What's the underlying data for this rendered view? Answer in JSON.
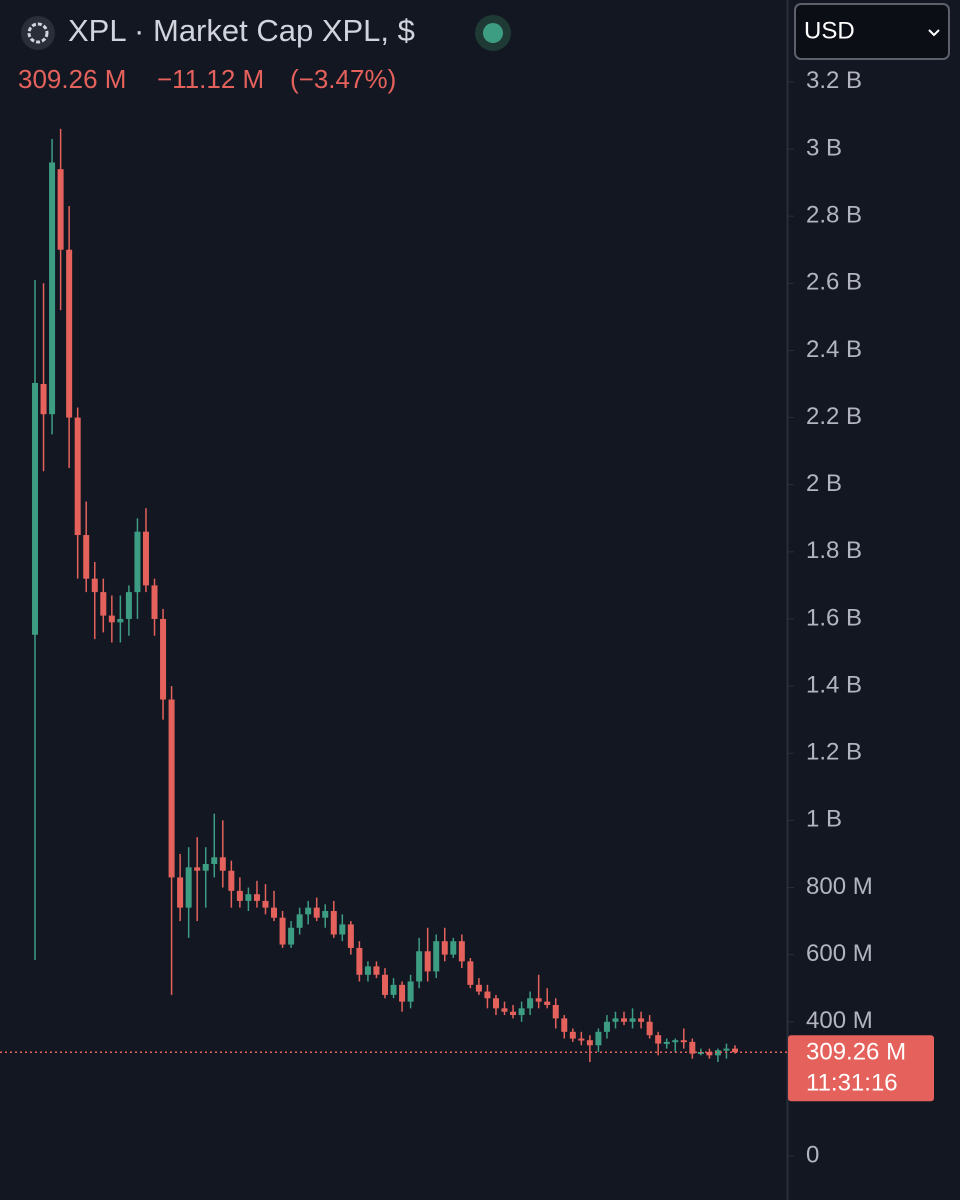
{
  "chart_data": {
    "type": "candlestick",
    "title": "XPL · Market Cap XPL, $",
    "currency": "USD",
    "last_price": {
      "value": 309.26,
      "label": "309.26 M"
    },
    "change": "−11.12 M",
    "change_pct": "(−3.47%)",
    "countdown": "11:31:16",
    "up_color": "#3d9d83",
    "down_color": "#e5625c",
    "ylim": [
      -131,
      3444
    ],
    "yticks": [
      0,
      {
        "value": 400,
        "label": "400 M"
      },
      {
        "value": 600,
        "label": "600 M"
      },
      {
        "value": 800,
        "label": "800 M"
      },
      {
        "value": 1000,
        "label": "1 B"
      },
      {
        "value": 1200,
        "label": "1.2 B"
      },
      {
        "value": 1400,
        "label": "1.4 B"
      },
      {
        "value": 1600,
        "label": "1.6 B"
      },
      {
        "value": 1800,
        "label": "1.8 B"
      },
      {
        "value": 2000,
        "label": "2 B"
      },
      {
        "value": 2200,
        "label": "2.2 B"
      },
      {
        "value": 2400,
        "label": "2.4 B"
      },
      {
        "value": 2600,
        "label": "2.6 B"
      },
      {
        "value": 2800,
        "label": "2.8 B"
      },
      {
        "value": 3000,
        "label": "3 B"
      },
      {
        "value": 3200,
        "label": "3.2 B"
      }
    ],
    "open": [
      1553,
      2300,
      2210,
      2940,
      2700,
      2200,
      1850,
      1720,
      1680,
      1610,
      1590,
      1600,
      1680,
      1860,
      1700,
      1600,
      1360,
      830,
      740,
      860,
      850,
      870,
      890,
      850,
      790,
      760,
      780,
      760,
      740,
      710,
      630,
      680,
      720,
      740,
      710,
      730,
      660,
      690,
      620,
      540,
      565,
      540,
      480,
      510,
      460,
      520,
      610,
      550,
      640,
      600,
      640,
      580,
      510,
      490,
      470,
      440,
      430,
      420,
      440,
      470,
      460,
      450,
      410,
      370,
      350,
      345,
      330,
      370,
      400,
      410,
      400,
      410,
      400,
      360,
      335,
      340,
      345,
      340,
      305,
      310,
      300,
      315,
      320
    ],
    "high": [
      2610,
      2600,
      3030,
      3060,
      2830,
      2230,
      1950,
      1770,
      1720,
      1670,
      1670,
      1700,
      1900,
      1930,
      1720,
      1630,
      1400,
      900,
      920,
      950,
      920,
      1020,
      1000,
      880,
      830,
      800,
      820,
      810,
      790,
      730,
      700,
      740,
      760,
      770,
      750,
      760,
      720,
      700,
      640,
      580,
      580,
      560,
      530,
      520,
      540,
      650,
      680,
      660,
      680,
      650,
      660,
      590,
      530,
      510,
      480,
      460,
      450,
      460,
      490,
      540,
      500,
      470,
      420,
      380,
      370,
      360,
      380,
      420,
      430,
      430,
      440,
      430,
      420,
      370,
      350,
      350,
      380,
      350,
      320,
      320,
      320,
      335,
      330
    ],
    "low": [
      584,
      2040,
      2150,
      2520,
      2050,
      1720,
      1680,
      1540,
      1560,
      1530,
      1530,
      1550,
      1600,
      1680,
      1550,
      1300,
      480,
      700,
      650,
      700,
      740,
      830,
      800,
      740,
      740,
      730,
      740,
      720,
      700,
      620,
      620,
      660,
      690,
      700,
      680,
      650,
      640,
      600,
      520,
      520,
      530,
      470,
      470,
      430,
      440,
      500,
      520,
      530,
      580,
      590,
      560,
      500,
      480,
      440,
      420,
      420,
      410,
      400,
      420,
      440,
      440,
      380,
      350,
      340,
      330,
      280,
      310,
      350,
      380,
      390,
      380,
      380,
      350,
      300,
      320,
      310,
      320,
      290,
      300,
      290,
      280,
      290,
      305
    ],
    "close": [
      2303,
      2210,
      2960,
      2700,
      2200,
      1850,
      1720,
      1680,
      1610,
      1590,
      1600,
      1680,
      1860,
      1700,
      1600,
      1360,
      830,
      740,
      860,
      850,
      870,
      890,
      850,
      790,
      760,
      780,
      760,
      740,
      710,
      630,
      680,
      720,
      740,
      710,
      730,
      660,
      690,
      620,
      540,
      565,
      540,
      480,
      510,
      460,
      520,
      610,
      550,
      640,
      600,
      640,
      580,
      510,
      490,
      470,
      440,
      430,
      420,
      440,
      470,
      460,
      450,
      410,
      370,
      350,
      345,
      330,
      370,
      400,
      410,
      400,
      410,
      400,
      360,
      335,
      340,
      345,
      340,
      305,
      310,
      300,
      315,
      320,
      309.26
    ]
  }
}
